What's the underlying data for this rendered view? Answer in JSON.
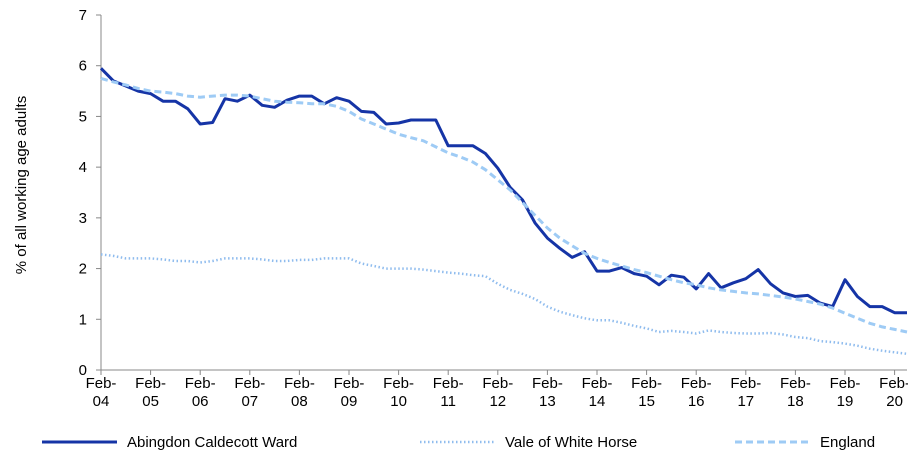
{
  "chart_data": {
    "type": "line",
    "y_label": "% of all working age adults",
    "categories": [
      "Feb-04",
      null,
      null,
      null,
      "Feb-05",
      null,
      null,
      null,
      "Feb-06",
      null,
      null,
      null,
      "Feb-07",
      null,
      null,
      null,
      "Feb-08",
      null,
      null,
      null,
      "Feb-09",
      null,
      null,
      null,
      "Feb-10",
      null,
      null,
      null,
      "Feb-11",
      null,
      null,
      null,
      "Feb-12",
      null,
      null,
      null,
      "Feb-13",
      null,
      null,
      null,
      "Feb-14",
      null,
      null,
      null,
      "Feb-15",
      null,
      null,
      null,
      "Feb-16",
      null,
      null,
      null,
      "Feb-17",
      null,
      null,
      null,
      "Feb-18",
      null,
      null,
      null,
      "Feb-19",
      null,
      null,
      null,
      "Feb-20",
      null
    ],
    "ylim": [
      0,
      7
    ],
    "yticks": [
      0,
      1,
      2,
      3,
      4,
      5,
      6,
      7
    ],
    "series": [
      {
        "name": "Abingdon Caldecott Ward",
        "color": "#1534a6",
        "style": "solid",
        "values": [
          5.95,
          5.7,
          5.6,
          5.5,
          5.45,
          5.3,
          5.3,
          5.15,
          4.85,
          4.88,
          5.35,
          5.3,
          5.42,
          5.22,
          5.18,
          5.32,
          5.4,
          5.4,
          5.25,
          5.37,
          5.3,
          5.1,
          5.08,
          4.85,
          4.87,
          4.93,
          4.93,
          4.93,
          4.42,
          4.42,
          4.42,
          4.27,
          3.98,
          3.6,
          3.35,
          2.9,
          2.6,
          2.4,
          2.22,
          2.33,
          1.95,
          1.95,
          2.02,
          1.9,
          1.85,
          1.68,
          1.87,
          1.83,
          1.6,
          1.9,
          1.62,
          1.72,
          1.8,
          1.98,
          1.7,
          1.52,
          1.45,
          1.47,
          1.32,
          1.25,
          1.78,
          1.45,
          1.25,
          1.25,
          1.13,
          1.13
        ]
      },
      {
        "name": "Vale of White Horse",
        "color": "#8fbcee",
        "style": "dotted",
        "values": [
          2.28,
          2.25,
          2.2,
          2.2,
          2.2,
          2.18,
          2.15,
          2.15,
          2.12,
          2.15,
          2.2,
          2.2,
          2.2,
          2.18,
          2.15,
          2.15,
          2.17,
          2.17,
          2.2,
          2.2,
          2.2,
          2.1,
          2.05,
          2.0,
          2.0,
          2.0,
          1.98,
          1.95,
          1.92,
          1.9,
          1.87,
          1.85,
          1.7,
          1.58,
          1.5,
          1.4,
          1.25,
          1.15,
          1.08,
          1.02,
          0.98,
          0.98,
          0.93,
          0.87,
          0.82,
          0.75,
          0.77,
          0.75,
          0.72,
          0.78,
          0.75,
          0.73,
          0.72,
          0.72,
          0.73,
          0.7,
          0.65,
          0.63,
          0.57,
          0.55,
          0.52,
          0.48,
          0.42,
          0.38,
          0.35,
          0.32
        ]
      },
      {
        "name": "England",
        "color": "#9ecbf5",
        "style": "dashed",
        "values": [
          5.75,
          5.68,
          5.62,
          5.55,
          5.5,
          5.48,
          5.45,
          5.4,
          5.38,
          5.4,
          5.42,
          5.42,
          5.4,
          5.35,
          5.3,
          5.28,
          5.27,
          5.25,
          5.25,
          5.2,
          5.1,
          4.95,
          4.85,
          4.75,
          4.65,
          4.58,
          4.52,
          4.4,
          4.28,
          4.2,
          4.1,
          3.95,
          3.75,
          3.55,
          3.3,
          3.05,
          2.8,
          2.6,
          2.45,
          2.3,
          2.2,
          2.12,
          2.05,
          1.98,
          1.92,
          1.85,
          1.78,
          1.72,
          1.68,
          1.62,
          1.58,
          1.55,
          1.52,
          1.5,
          1.47,
          1.44,
          1.4,
          1.35,
          1.3,
          1.22,
          1.12,
          1.02,
          0.92,
          0.85,
          0.8,
          0.75
        ]
      }
    ]
  }
}
